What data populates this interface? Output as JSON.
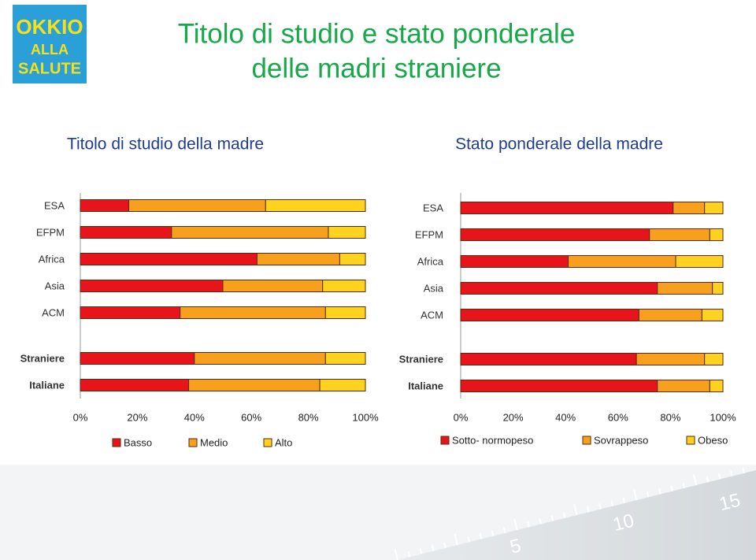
{
  "header": {
    "title_lines": [
      "Titolo di studio e stato ponderale",
      "delle madri straniere"
    ],
    "logo": [
      "OKKIO",
      "ALLA",
      "SALUTE"
    ]
  },
  "chart_data": [
    {
      "type": "stacked-bar-horizontal",
      "title": "Titolo di studio della madre",
      "categories": [
        "ESA",
        "EFPM",
        "Africa",
        "Asia",
        "ACM",
        "Straniere",
        "Italiane"
      ],
      "series": [
        {
          "name": "Basso",
          "color": "#e8141c",
          "values": [
            17,
            32,
            62,
            50,
            35,
            40,
            38
          ]
        },
        {
          "name": "Medio",
          "color": "#f7a01e",
          "values": [
            48,
            55,
            29,
            35,
            51,
            46,
            46
          ]
        },
        {
          "name": "Alto",
          "color": "#ffd21f",
          "values": [
            35,
            13,
            9,
            15,
            14,
            14,
            16
          ]
        }
      ],
      "xlim": [
        0,
        100
      ],
      "xticks": [
        {
          "value": 0,
          "label": "0%"
        },
        {
          "value": 20,
          "label": "20%"
        },
        {
          "value": 40,
          "label": "40%"
        },
        {
          "value": 60,
          "label": "60%"
        },
        {
          "value": 80,
          "label": "80%"
        },
        {
          "value": 100,
          "label": "100%"
        }
      ]
    },
    {
      "type": "stacked-bar-horizontal",
      "title": "Stato ponderale della madre",
      "categories": [
        "ESA",
        "EFPM",
        "Africa",
        "Asia",
        "ACM",
        "Straniere",
        "Italiane"
      ],
      "series": [
        {
          "name": "Sotto- normopeso",
          "color": "#e8141c",
          "values": [
            81,
            72,
            41,
            75,
            68,
            67,
            75
          ]
        },
        {
          "name": "Sovrappeso",
          "color": "#f7a01e",
          "values": [
            12,
            23,
            41,
            21,
            24,
            26,
            20
          ]
        },
        {
          "name": "Obeso",
          "color": "#ffd21f",
          "values": [
            7,
            5,
            18,
            4,
            8,
            7,
            5
          ]
        }
      ],
      "xlim": [
        0,
        100
      ],
      "xticks": [
        {
          "value": 0,
          "label": "0%"
        },
        {
          "value": 20,
          "label": "20%"
        },
        {
          "value": 40,
          "label": "40%"
        },
        {
          "value": 60,
          "label": "60%"
        },
        {
          "value": 80,
          "label": "80%"
        },
        {
          "value": 100,
          "label": "100%"
        }
      ]
    }
  ],
  "footer": {
    "ruler_labels": [
      "5",
      "10",
      "15"
    ]
  }
}
